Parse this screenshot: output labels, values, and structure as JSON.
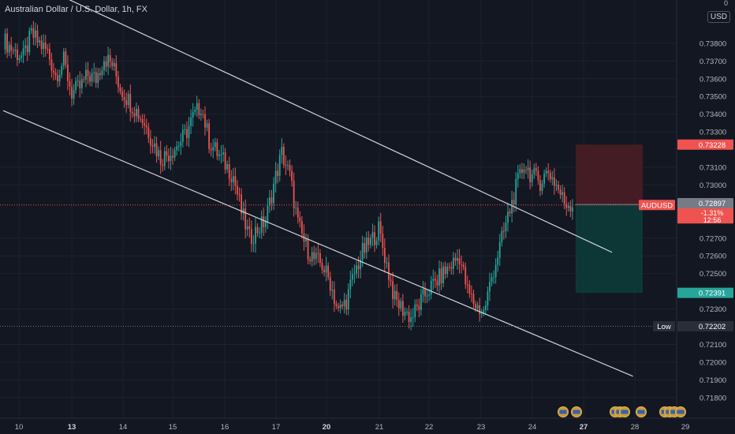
{
  "header": {
    "title": "Australian Dollar / U.S. Dollar, 1h, FX"
  },
  "currency_button": "USD",
  "currency_menu_mark": "0",
  "colors": {
    "background": "#131722",
    "up": "#26a69a",
    "down": "#ef5350",
    "grid": "#1e222d",
    "trendline": "#d1d4dc",
    "stop_zone": "#4a1d23",
    "target_zone": "#0d3b3a"
  },
  "chart_data": {
    "type": "candlestick",
    "symbol": "AUDUSD",
    "interval": "1h",
    "ylim": [
      0.7175,
      0.74
    ],
    "grid": true,
    "y_ticks": [
      "0.73800",
      "0.73700",
      "0.73600",
      "0.73500",
      "0.73400",
      "0.73300",
      "0.73100",
      "0.73000",
      "0.72700",
      "0.72600",
      "0.72500",
      "0.72300",
      "0.72100",
      "0.72000",
      "0.71900",
      "0.71800"
    ],
    "x_ticks": [
      "10",
      "13",
      "14",
      "15",
      "16",
      "17",
      "20",
      "21",
      "22",
      "23",
      "24",
      "27",
      "28",
      "29"
    ],
    "x_bold": [
      "13",
      "20",
      "27"
    ],
    "ohlc_anchors": [
      [
        0,
        0.7382
      ],
      [
        6,
        0.7375
      ],
      [
        10,
        0.7372
      ],
      [
        14,
        0.7385
      ],
      [
        18,
        0.738
      ],
      [
        22,
        0.7375
      ],
      [
        26,
        0.7362
      ],
      [
        30,
        0.737
      ],
      [
        34,
        0.7352
      ],
      [
        38,
        0.7355
      ],
      [
        42,
        0.7362
      ],
      [
        46,
        0.736
      ],
      [
        50,
        0.7372
      ],
      [
        54,
        0.7368
      ],
      [
        58,
        0.7355
      ],
      [
        62,
        0.7348
      ],
      [
        66,
        0.7342
      ],
      [
        70,
        0.7335
      ],
      [
        74,
        0.7325
      ],
      [
        78,
        0.7315
      ],
      [
        82,
        0.7318
      ],
      [
        86,
        0.7322
      ],
      [
        90,
        0.7328
      ],
      [
        94,
        0.7338
      ],
      [
        98,
        0.7345
      ],
      [
        102,
        0.7325
      ],
      [
        106,
        0.7318
      ],
      [
        110,
        0.7312
      ],
      [
        114,
        0.7305
      ],
      [
        118,
        0.7285
      ],
      [
        122,
        0.727
      ],
      [
        126,
        0.7275
      ],
      [
        130,
        0.728
      ],
      [
        134,
        0.73
      ],
      [
        138,
        0.7318
      ],
      [
        142,
        0.7305
      ],
      [
        146,
        0.7278
      ],
      [
        150,
        0.7265
      ],
      [
        154,
        0.7258
      ],
      [
        158,
        0.7255
      ],
      [
        162,
        0.7245
      ],
      [
        166,
        0.7228
      ],
      [
        170,
        0.7235
      ],
      [
        174,
        0.725
      ],
      [
        178,
        0.7262
      ],
      [
        182,
        0.7268
      ],
      [
        186,
        0.7275
      ],
      [
        190,
        0.7255
      ],
      [
        194,
        0.7235
      ],
      [
        198,
        0.723
      ],
      [
        202,
        0.7225
      ],
      [
        206,
        0.7232
      ],
      [
        210,
        0.724
      ],
      [
        214,
        0.7245
      ],
      [
        218,
        0.725
      ],
      [
        222,
        0.7255
      ],
      [
        226,
        0.726
      ],
      [
        230,
        0.724
      ],
      [
        234,
        0.7232
      ],
      [
        238,
        0.7228
      ],
      [
        242,
        0.7248
      ],
      [
        246,
        0.7265
      ],
      [
        250,
        0.7282
      ],
      [
        254,
        0.7298
      ],
      [
        258,
        0.7312
      ],
      [
        262,
        0.7305
      ],
      [
        266,
        0.7302
      ],
      [
        270,
        0.7308
      ],
      [
        274,
        0.73
      ],
      [
        278,
        0.729
      ],
      [
        282,
        0.7289
      ]
    ],
    "candle_count": 282,
    "trendlines": [
      {
        "from": [
          0,
          0.7422
        ],
        "to": [
          325,
          0.7262
        ]
      },
      {
        "from": [
          0,
          0.7342
        ],
        "to": [
          310,
          0.7192
        ]
      }
    ],
    "price_markers": [
      {
        "label": "AUDUSD",
        "value": "0.72887",
        "change": "-1.31%",
        "countdown": "12:56",
        "color": "#ef5350"
      },
      {
        "label": "",
        "value": "0.72897",
        "color": "#787b86"
      },
      {
        "label": "",
        "value": "0.73228",
        "color": "#ef5350"
      },
      {
        "label": "",
        "value": "0.72391",
        "color": "#26a69a"
      },
      {
        "label": "Low",
        "value": "0.72202",
        "color": "#2a2e39"
      }
    ],
    "short_position": {
      "entry": 0.7289,
      "stop": 0.73228,
      "target": 0.72391,
      "from_bar": 282,
      "to_bar": 318
    },
    "low_line": 0.72202,
    "current_line": 0.72887
  }
}
